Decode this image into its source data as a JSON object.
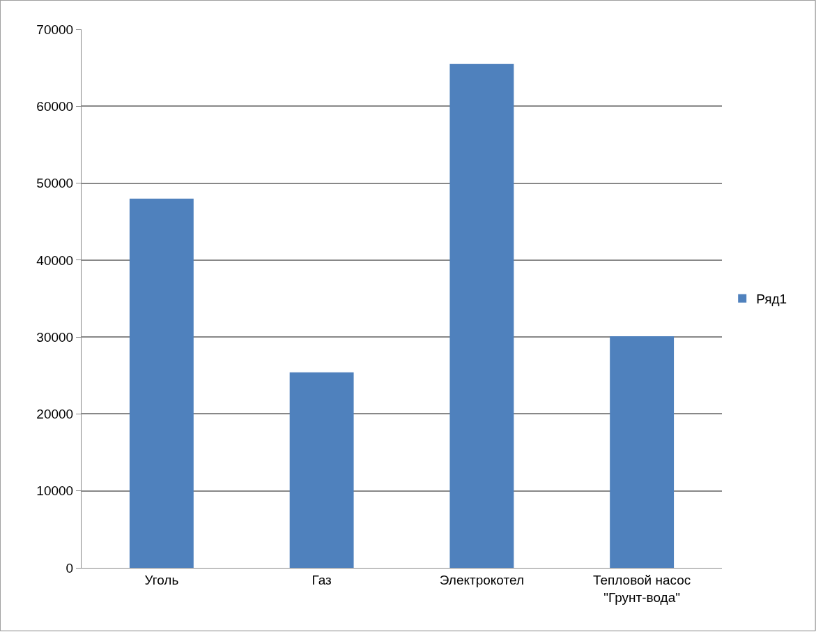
{
  "chart_data": {
    "type": "bar",
    "categories": [
      "Уголь",
      "Газ",
      "Электрокотел",
      "Тепловой насос\n\"Грунт-вода\""
    ],
    "series": [
      {
        "name": "Ряд1",
        "color": "#4f81bd",
        "values": [
          48000,
          25400,
          65500,
          30100
        ]
      }
    ],
    "ylim": [
      0,
      70000
    ],
    "yticks": [
      0,
      10000,
      20000,
      30000,
      40000,
      50000,
      60000,
      70000
    ],
    "grid": "y",
    "legend": "right"
  }
}
